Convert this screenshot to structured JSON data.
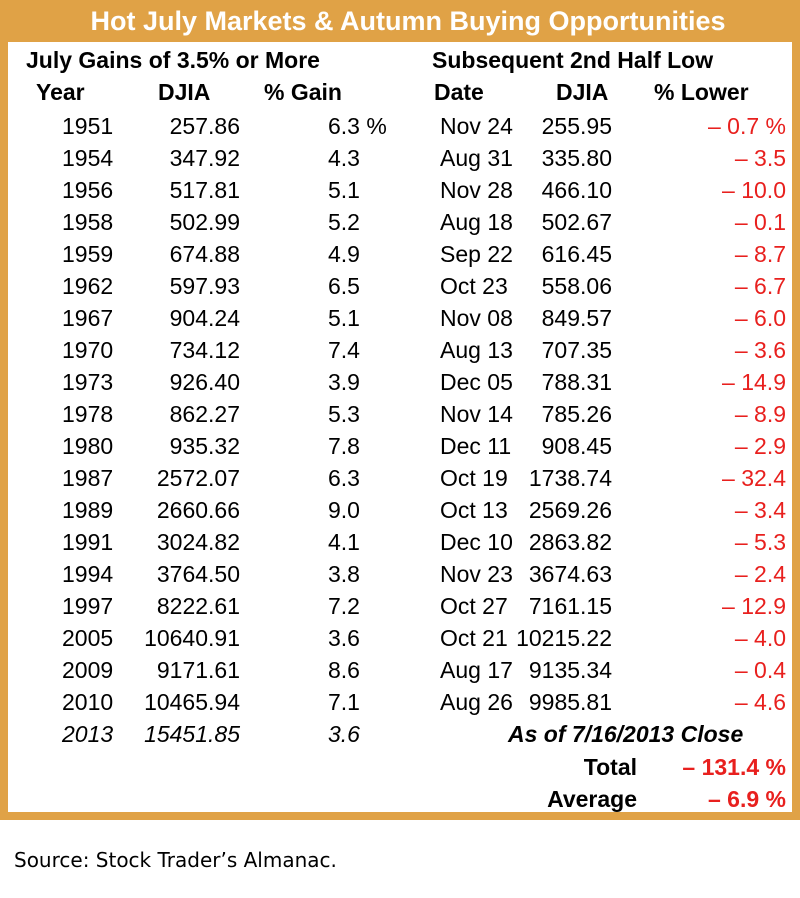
{
  "title": "Hot July Markets & Autumn Buying Opportunities",
  "colors": {
    "border": "#E0A246",
    "negative": "#E8201E"
  },
  "left_group_header": "July Gains of 3.5% or More",
  "right_group_header": "Subsequent 2nd Half Low",
  "columns": {
    "year": "Year",
    "djia": "DJIA",
    "gain": "% Gain",
    "date": "Date",
    "djia_low": "DJIA",
    "lower": "% Lower"
  },
  "rows": [
    {
      "year": "1951",
      "djia": "257.86",
      "gain": "6.3 %",
      "date": "Nov 24",
      "low": "255.95",
      "lower": "– 0.7 %"
    },
    {
      "year": "1954",
      "djia": "347.92",
      "gain": "4.3",
      "date": "Aug 31",
      "low": "335.80",
      "lower": "– 3.5"
    },
    {
      "year": "1956",
      "djia": "517.81",
      "gain": "5.1",
      "date": "Nov 28",
      "low": "466.10",
      "lower": "– 10.0"
    },
    {
      "year": "1958",
      "djia": "502.99",
      "gain": "5.2",
      "date": "Aug 18",
      "low": "502.67",
      "lower": "– 0.1"
    },
    {
      "year": "1959",
      "djia": "674.88",
      "gain": "4.9",
      "date": "Sep 22",
      "low": "616.45",
      "lower": "– 8.7"
    },
    {
      "year": "1962",
      "djia": "597.93",
      "gain": "6.5",
      "date": "Oct 23",
      "low": "558.06",
      "lower": "– 6.7"
    },
    {
      "year": "1967",
      "djia": "904.24",
      "gain": "5.1",
      "date": "Nov 08",
      "low": "849.57",
      "lower": "– 6.0"
    },
    {
      "year": "1970",
      "djia": "734.12",
      "gain": "7.4",
      "date": "Aug 13",
      "low": "707.35",
      "lower": "– 3.6"
    },
    {
      "year": "1973",
      "djia": "926.40",
      "gain": "3.9",
      "date": "Dec 05",
      "low": "788.31",
      "lower": "– 14.9"
    },
    {
      "year": "1978",
      "djia": "862.27",
      "gain": "5.3",
      "date": "Nov 14",
      "low": "785.26",
      "lower": "– 8.9"
    },
    {
      "year": "1980",
      "djia": "935.32",
      "gain": "7.8",
      "date": "Dec 11",
      "low": "908.45",
      "lower": "– 2.9"
    },
    {
      "year": "1987",
      "djia": "2572.07",
      "gain": "6.3",
      "date": "Oct 19",
      "low": "1738.74",
      "lower": "– 32.4"
    },
    {
      "year": "1989",
      "djia": "2660.66",
      "gain": "9.0",
      "date": "Oct 13",
      "low": "2569.26",
      "lower": "– 3.4"
    },
    {
      "year": "1991",
      "djia": "3024.82",
      "gain": "4.1",
      "date": "Dec 10",
      "low": "2863.82",
      "lower": "– 5.3"
    },
    {
      "year": "1994",
      "djia": "3764.50",
      "gain": "3.8",
      "date": "Nov 23",
      "low": "3674.63",
      "lower": "– 2.4"
    },
    {
      "year": "1997",
      "djia": "8222.61",
      "gain": "7.2",
      "date": "Oct 27",
      "low": "7161.15",
      "lower": "– 12.9"
    },
    {
      "year": "2005",
      "djia": "10640.91",
      "gain": "3.6",
      "date": "Oct 21",
      "low": "10215.22",
      "lower": "– 4.0"
    },
    {
      "year": "2009",
      "djia": "9171.61",
      "gain": "8.6",
      "date": "Aug 17",
      "low": "9135.34",
      "lower": "– 0.4"
    },
    {
      "year": "2010",
      "djia": "10465.94",
      "gain": "7.1",
      "date": "Aug 26",
      "low": "9985.81",
      "lower": "– 4.6"
    }
  ],
  "current_row": {
    "year": "2013",
    "djia": "15451.85",
    "gain": "3.6",
    "note": "As of 7/16/2013 Close"
  },
  "total": {
    "label": "Total",
    "value": "– 131.4 %"
  },
  "average": {
    "label": "Average",
    "value": "– 6.9 %"
  },
  "source": "Source:  Stock Trader’s Almanac."
}
